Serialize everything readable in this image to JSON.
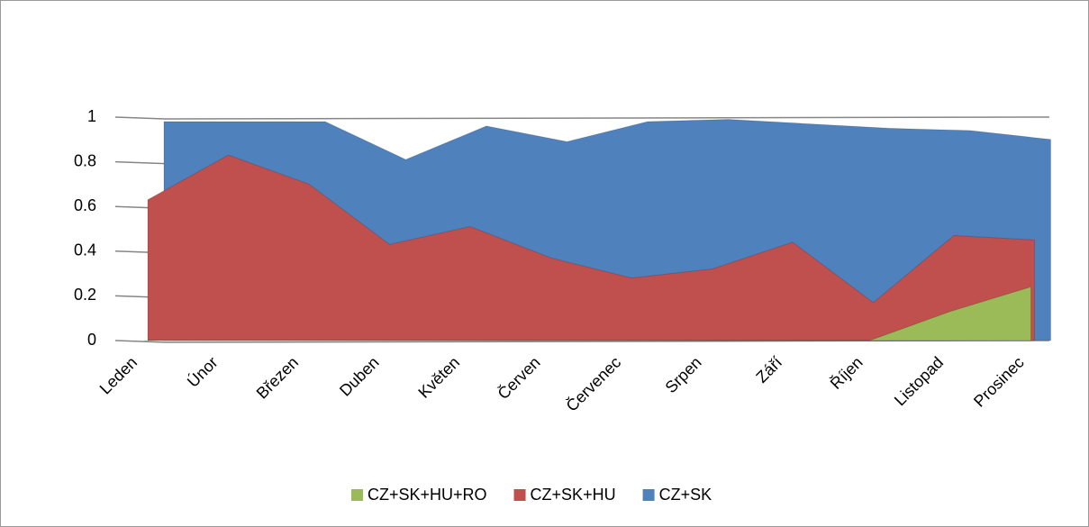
{
  "chart_data": {
    "type": "area",
    "categories": [
      "Leden",
      "Únor",
      "Březen",
      "Duben",
      "Květen",
      "Červen",
      "Červenec",
      "Srpen",
      "Září",
      "Říjen",
      "Listopad",
      "Prosinec"
    ],
    "series": [
      {
        "name": "CZ+SK+HU+RO",
        "color": "#9bbb59",
        "values": [
          0,
          0,
          0,
          0,
          0,
          0,
          0,
          0,
          0,
          0,
          0.13,
          0.24
        ]
      },
      {
        "name": "CZ+SK+HU",
        "color": "#c0504d",
        "values": [
          0.63,
          0.83,
          0.7,
          0.43,
          0.51,
          0.37,
          0.28,
          0.32,
          0.44,
          0.17,
          0.47,
          0.45
        ]
      },
      {
        "name": "CZ+SK",
        "color": "#4f81bd",
        "values": [
          0.98,
          0.98,
          0.98,
          0.81,
          0.96,
          0.89,
          0.98,
          0.99,
          0.97,
          0.95,
          0.94,
          0.9
        ]
      }
    ],
    "ylim": [
      0,
      1
    ],
    "yticks": [
      0,
      0.2,
      0.4,
      0.6,
      0.8,
      1
    ],
    "grid": true,
    "legend": "bottom"
  }
}
